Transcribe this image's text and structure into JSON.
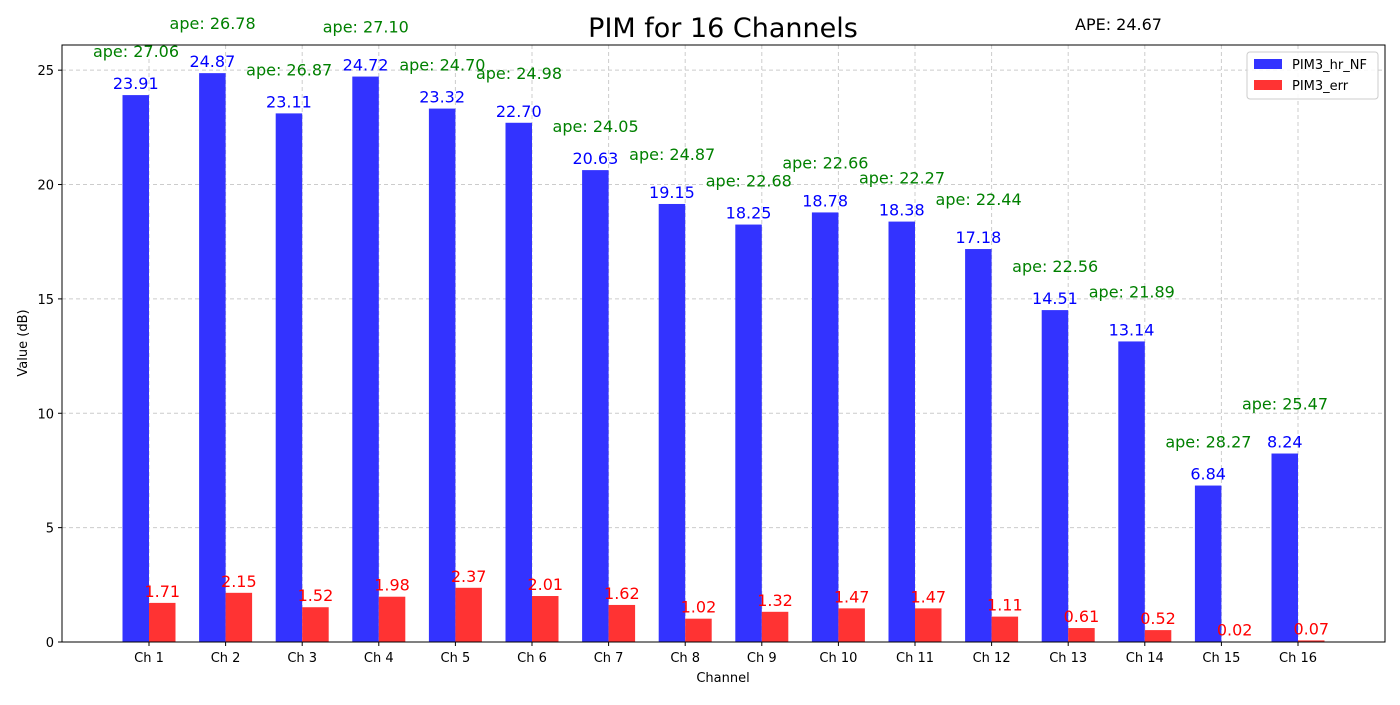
{
  "chart_data": {
    "type": "bar",
    "title": "PIM for 16 Channels",
    "annotation": "APE: 24.67",
    "xlabel": "Channel",
    "ylabel": "Value (dB)",
    "ylim": [
      0,
      26.1
    ],
    "yticks": [
      0,
      5,
      10,
      15,
      20,
      25
    ],
    "grid": true,
    "legend_position": "top-right",
    "categories": [
      "Ch 1",
      "Ch 2",
      "Ch 3",
      "Ch 4",
      "Ch 5",
      "Ch 6",
      "Ch 7",
      "Ch 8",
      "Ch 9",
      "Ch 10",
      "Ch 11",
      "Ch 12",
      "Ch 13",
      "Ch 14",
      "Ch 15",
      "Ch 16"
    ],
    "series": [
      {
        "name": "PIM3_hr_NF",
        "color": "#3333ff",
        "label_color": "#0000ff",
        "values": [
          23.91,
          24.87,
          23.11,
          24.72,
          23.32,
          22.7,
          20.63,
          19.15,
          18.25,
          18.78,
          18.38,
          17.18,
          14.51,
          13.14,
          6.84,
          8.24
        ],
        "labels": [
          "23.91",
          "24.87",
          "23.11",
          "24.72",
          "23.32",
          "22.70",
          "20.63",
          "19.15",
          "18.25",
          "18.78",
          "18.38",
          "17.18",
          "14.51",
          "13.14",
          "6.84",
          "8.24"
        ]
      },
      {
        "name": "PIM3_err",
        "color": "#ff3333",
        "label_color": "#ff0000",
        "values": [
          1.71,
          2.15,
          1.52,
          1.98,
          2.37,
          2.01,
          1.62,
          1.02,
          1.32,
          1.47,
          1.47,
          1.11,
          0.61,
          0.52,
          0.02,
          0.07
        ],
        "labels": [
          "1.71",
          "2.15",
          "1.52",
          "1.98",
          "2.37",
          "2.01",
          "1.62",
          "1.02",
          "1.32",
          "1.47",
          "1.47",
          "1.11",
          "0.61",
          "0.52",
          "0.02",
          "0.07"
        ]
      }
    ],
    "ape_labels": [
      "ape: 27.06",
      "ape: 26.78",
      "ape: 26.87",
      "ape: 27.10",
      "ape: 24.70",
      "ape: 24.98",
      "ape: 24.05",
      "ape: 24.87",
      "ape: 22.68",
      "ape: 22.66",
      "ape: 22.27",
      "ape: 22.44",
      "ape: 22.56",
      "ape: 21.89",
      "ape: 28.27",
      "ape: 25.47"
    ]
  }
}
